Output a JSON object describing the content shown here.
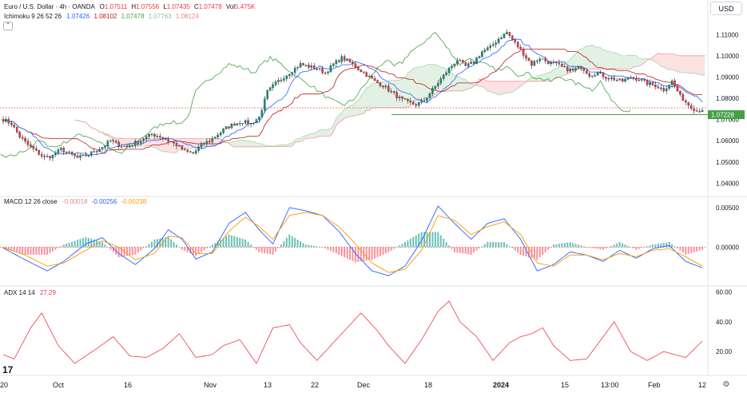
{
  "header": {
    "symbol": "Euro / U.S. Dollar · 4h · OANDA",
    "o_label": "O",
    "o": "1.07511",
    "h_label": "H",
    "h": "1.07556",
    "l_label": "L",
    "l": "1.07435",
    "c_label": "C",
    "c": "1.07478",
    "vol_label": "Vol",
    "vol": "5.475K",
    "currency": "USD"
  },
  "ichimoku_legend": {
    "label": "Ichimoku 9 26 52 26",
    "values": [
      "1.07426",
      "1.08102",
      "1.07478",
      "1.07763",
      "1.08124"
    ],
    "colors": [
      "#2962ff",
      "#b71c1c",
      "#43a047",
      "#a5d6a7",
      "#ef9a9a"
    ]
  },
  "macd_legend": {
    "label": "MACD 12 26 close",
    "values": [
      "-0.00018",
      "-0.00256",
      "-0.00238"
    ],
    "colors": [
      "#f5b5b5",
      "#2962ff",
      "#ff9800"
    ]
  },
  "adx_legend": {
    "label": "ADX 14 14",
    "value": "27.29",
    "color": "#f23645"
  },
  "price_axis": {
    "ticks": [
      "1.11000",
      "1.10000",
      "1.09000",
      "1.08000",
      "1.07000",
      "1.06000",
      "1.05000",
      "1.04000"
    ],
    "current_price": "1.07228"
  },
  "macd_axis": {
    "ticks": [
      "0.00500",
      "0.00000"
    ]
  },
  "adx_axis": {
    "ticks": [
      "60.00",
      "40.00",
      "20.00"
    ]
  },
  "time_axis": {
    "labels": [
      {
        "text": "20",
        "bold": false
      },
      {
        "text": "Oct",
        "bold": false
      },
      {
        "text": "16",
        "bold": false
      },
      {
        "text": "Nov",
        "bold": false
      },
      {
        "text": "13",
        "bold": false
      },
      {
        "text": "22",
        "bold": false
      },
      {
        "text": "Dec",
        "bold": false
      },
      {
        "text": "18",
        "bold": false
      },
      {
        "text": "2024",
        "bold": true
      },
      {
        "text": "15",
        "bold": false
      },
      {
        "text": "13:00",
        "bold": false
      },
      {
        "text": "Feb",
        "bold": false
      },
      {
        "text": "12",
        "bold": false
      }
    ]
  },
  "icons": {
    "settings": "gear-icon",
    "logo": "tradingview-logo-icon",
    "collapse": "chevron-up-icon"
  },
  "chart_data": [
    {
      "type": "candlestick",
      "panel": "price",
      "symbol": "EUR/USD",
      "interval": "4h",
      "y_range": [
        1.036,
        1.115
      ],
      "horizontal_line": 1.07228,
      "close_path": [
        [
          0,
          1.07
        ],
        [
          3,
          1.068
        ],
        [
          6,
          1.062
        ],
        [
          9,
          1.058
        ],
        [
          12,
          1.055
        ],
        [
          15,
          1.052
        ],
        [
          18,
          1.053
        ],
        [
          21,
          1.056
        ],
        [
          24,
          1.054
        ],
        [
          27,
          1.052
        ],
        [
          30,
          1.053
        ],
        [
          33,
          1.055
        ],
        [
          36,
          1.057
        ],
        [
          39,
          1.06
        ],
        [
          42,
          1.058
        ],
        [
          45,
          1.057
        ],
        [
          48,
          1.059
        ],
        [
          51,
          1.061
        ],
        [
          54,
          1.063
        ],
        [
          57,
          1.062
        ],
        [
          60,
          1.06
        ],
        [
          63,
          1.058
        ],
        [
          66,
          1.055
        ],
        [
          69,
          1.054
        ],
        [
          72,
          1.058
        ],
        [
          75,
          1.06
        ],
        [
          78,
          1.063
        ],
        [
          81,
          1.066
        ],
        [
          84,
          1.068
        ],
        [
          87,
          1.069
        ],
        [
          90,
          1.068
        ],
        [
          93,
          1.071
        ],
        [
          96,
          1.083
        ],
        [
          99,
          1.087
        ],
        [
          102,
          1.09
        ],
        [
          105,
          1.093
        ],
        [
          108,
          1.096
        ],
        [
          111,
          1.095
        ],
        [
          114,
          1.094
        ],
        [
          117,
          1.092
        ],
        [
          120,
          1.096
        ],
        [
          123,
          1.099
        ],
        [
          126,
          1.097
        ],
        [
          129,
          1.094
        ],
        [
          132,
          1.091
        ],
        [
          135,
          1.088
        ],
        [
          138,
          1.086
        ],
        [
          141,
          1.083
        ],
        [
          144,
          1.08
        ],
        [
          147,
          1.078
        ],
        [
          150,
          1.077
        ],
        [
          153,
          1.079
        ],
        [
          156,
          1.084
        ],
        [
          159,
          1.089
        ],
        [
          162,
          1.094
        ],
        [
          165,
          1.098
        ],
        [
          168,
          1.095
        ],
        [
          171,
          1.097
        ],
        [
          174,
          1.102
        ],
        [
          177,
          1.104
        ],
        [
          180,
          1.108
        ],
        [
          183,
          1.111
        ],
        [
          186,
          1.106
        ],
        [
          189,
          1.101
        ],
        [
          192,
          1.096
        ],
        [
          195,
          1.099
        ],
        [
          198,
          1.097
        ],
        [
          201,
          1.096
        ],
        [
          204,
          1.094
        ],
        [
          207,
          1.093
        ],
        [
          210,
          1.095
        ],
        [
          213,
          1.091
        ],
        [
          216,
          1.092
        ],
        [
          219,
          1.09
        ],
        [
          222,
          1.089
        ],
        [
          225,
          1.088
        ],
        [
          228,
          1.09
        ],
        [
          231,
          1.089
        ],
        [
          234,
          1.087
        ],
        [
          237,
          1.086
        ],
        [
          240,
          1.084
        ],
        [
          243,
          1.088
        ],
        [
          246,
          1.081
        ],
        [
          249,
          1.077
        ],
        [
          252,
          1.074
        ],
        [
          254,
          1.0748
        ]
      ],
      "ichimoku": {
        "tenkan": "1.07426",
        "kijun": "1.08102",
        "chikou": "1.07478",
        "span_a": "1.07763",
        "span_b": "1.08124"
      }
    },
    {
      "type": "line",
      "panel": "macd",
      "y_range": [
        -0.0045,
        0.006
      ],
      "series": [
        {
          "name": "MACD",
          "color": "#2962ff",
          "points": [
            [
              0,
              -0.0001
            ],
            [
              8,
              -0.0016
            ],
            [
              16,
              -0.003
            ],
            [
              22,
              -0.0018
            ],
            [
              30,
              0.0004
            ],
            [
              36,
              0.0012
            ],
            [
              42,
              -0.0008
            ],
            [
              48,
              -0.0022
            ],
            [
              55,
              -0.0002
            ],
            [
              60,
              0.0022
            ],
            [
              65,
              0.001
            ],
            [
              70,
              -0.0015
            ],
            [
              76,
              -0.0006
            ],
            [
              82,
              0.003
            ],
            [
              88,
              0.0044
            ],
            [
              93,
              0.0022
            ],
            [
              98,
              0.0004
            ],
            [
              104,
              0.005
            ],
            [
              110,
              0.0046
            ],
            [
              116,
              0.004
            ],
            [
              122,
              0.002
            ],
            [
              128,
              -0.0008
            ],
            [
              134,
              -0.003
            ],
            [
              140,
              -0.0036
            ],
            [
              146,
              -0.0024
            ],
            [
              152,
              0.0008
            ],
            [
              158,
              0.0052
            ],
            [
              164,
              0.003
            ],
            [
              170,
              0.001
            ],
            [
              176,
              0.003
            ],
            [
              182,
              0.0036
            ],
            [
              188,
              0.001
            ],
            [
              194,
              -0.003
            ],
            [
              200,
              -0.0022
            ],
            [
              206,
              -0.0006
            ],
            [
              212,
              -0.001
            ],
            [
              218,
              -0.0018
            ],
            [
              224,
              -0.0004
            ],
            [
              230,
              -0.0014
            ],
            [
              236,
              -0.0002
            ],
            [
              242,
              0.0002
            ],
            [
              248,
              -0.0018
            ],
            [
              254,
              -0.0026
            ]
          ]
        },
        {
          "name": "Signal",
          "color": "#ff9800",
          "points": [
            [
              0,
              0.0
            ],
            [
              8,
              -0.001
            ],
            [
              16,
              -0.0024
            ],
            [
              22,
              -0.002
            ],
            [
              30,
              -0.0004
            ],
            [
              36,
              0.0008
            ],
            [
              42,
              0.0
            ],
            [
              48,
              -0.0016
            ],
            [
              55,
              -0.0008
            ],
            [
              60,
              0.0014
            ],
            [
              65,
              0.0012
            ],
            [
              70,
              -0.0008
            ],
            [
              76,
              -0.0008
            ],
            [
              82,
              0.002
            ],
            [
              88,
              0.0038
            ],
            [
              93,
              0.0026
            ],
            [
              98,
              0.001
            ],
            [
              104,
              0.004
            ],
            [
              110,
              0.0044
            ],
            [
              116,
              0.004
            ],
            [
              122,
              0.0026
            ],
            [
              128,
              0.0004
            ],
            [
              134,
              -0.002
            ],
            [
              140,
              -0.0032
            ],
            [
              146,
              -0.0028
            ],
            [
              152,
              -0.0004
            ],
            [
              158,
              0.004
            ],
            [
              164,
              0.0034
            ],
            [
              170,
              0.0016
            ],
            [
              176,
              0.0026
            ],
            [
              182,
              0.0032
            ],
            [
              188,
              0.0016
            ],
            [
              194,
              -0.002
            ],
            [
              200,
              -0.0024
            ],
            [
              206,
              -0.001
            ],
            [
              212,
              -0.001
            ],
            [
              218,
              -0.0016
            ],
            [
              224,
              -0.0008
            ],
            [
              230,
              -0.0012
            ],
            [
              236,
              -0.0004
            ],
            [
              242,
              -0.0002
            ],
            [
              248,
              -0.0012
            ],
            [
              254,
              -0.0024
            ]
          ]
        }
      ]
    },
    {
      "type": "line",
      "panel": "adx",
      "y_range": [
        5,
        62
      ],
      "series": [
        {
          "name": "ADX",
          "color": "#f23645",
          "points": [
            [
              0,
              18
            ],
            [
              4,
              15
            ],
            [
              10,
              36
            ],
            [
              14,
              46
            ],
            [
              20,
              24
            ],
            [
              26,
              12
            ],
            [
              34,
              22
            ],
            [
              40,
              30
            ],
            [
              46,
              17
            ],
            [
              52,
              16
            ],
            [
              58,
              22
            ],
            [
              64,
              32
            ],
            [
              70,
              16
            ],
            [
              76,
              18
            ],
            [
              80,
              24
            ],
            [
              86,
              28
            ],
            [
              92,
              12
            ],
            [
              98,
              36
            ],
            [
              104,
              38
            ],
            [
              108,
              26
            ],
            [
              114,
              14
            ],
            [
              120,
              26
            ],
            [
              126,
              38
            ],
            [
              130,
              46
            ],
            [
              136,
              34
            ],
            [
              140,
              24
            ],
            [
              146,
              12
            ],
            [
              152,
              28
            ],
            [
              158,
              47
            ],
            [
              162,
              54
            ],
            [
              166,
              40
            ],
            [
              172,
              30
            ],
            [
              178,
              14
            ],
            [
              184,
              26
            ],
            [
              188,
              30
            ],
            [
              192,
              32
            ],
            [
              196,
              36
            ],
            [
              200,
              24
            ],
            [
              206,
              14
            ],
            [
              212,
              15
            ],
            [
              218,
              30
            ],
            [
              222,
              40
            ],
            [
              228,
              20
            ],
            [
              234,
              14
            ],
            [
              240,
              20
            ],
            [
              244,
              18
            ],
            [
              248,
              16
            ],
            [
              254,
              27
            ]
          ]
        }
      ]
    }
  ]
}
